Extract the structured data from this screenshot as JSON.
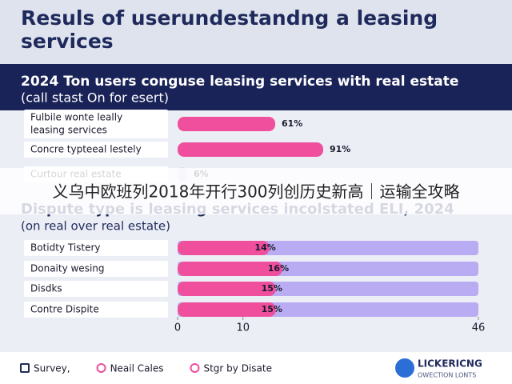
{
  "header": {
    "title": [
      "Resuls of userundestandng a leasing",
      "services"
    ]
  },
  "chart_data": [
    {
      "type": "bar",
      "orientation": "horizontal",
      "title": "2024 Ton users conguse leasing services with real estate",
      "subtitle": "(call stast On for esert)",
      "categories": [
        [
          "Fulbile wonte leally",
          "leasing services"
        ],
        [
          "Concre typteeal lestely"
        ],
        [
          "Curtour real estate"
        ]
      ],
      "values": [
        61,
        91,
        6
      ],
      "value_labels": [
        "61%",
        "91%",
        "6%"
      ],
      "colors": [
        "#ef4f9c",
        "#ef4f9c",
        "#d9d4f7"
      ],
      "xlim": [
        0,
        100
      ]
    },
    {
      "type": "bar",
      "orientation": "horizontal",
      "title": "Dispute type is leasing services incolstated ELI, 2024",
      "subtitle": "(on real over real estate)",
      "categories": [
        "Botidty Tistery",
        "Donaity wesing",
        "Disdks",
        "Contre Dispite"
      ],
      "values": [
        14,
        16,
        15,
        15
      ],
      "value_labels": [
        "14%",
        "16%",
        "15%",
        "15%"
      ],
      "color": "#ef4f9c",
      "track_color": "#b9acf2",
      "xlim": [
        0,
        46
      ],
      "xticks": [
        0,
        10,
        46
      ]
    }
  ],
  "legend": [
    {
      "label": "Survey,",
      "color": "#1f2a5c"
    },
    {
      "label": "Neail Cales",
      "color": "#ef4f9c"
    },
    {
      "label": "Stgr by Disate",
      "color": "#ef4f9c"
    }
  ],
  "logo": {
    "name": "LICKERICNG",
    "tagline": "OWECTION LONTS"
  },
  "banner": "义乌中欧班列2018年开行300列创历史新高｜运输全攻略"
}
